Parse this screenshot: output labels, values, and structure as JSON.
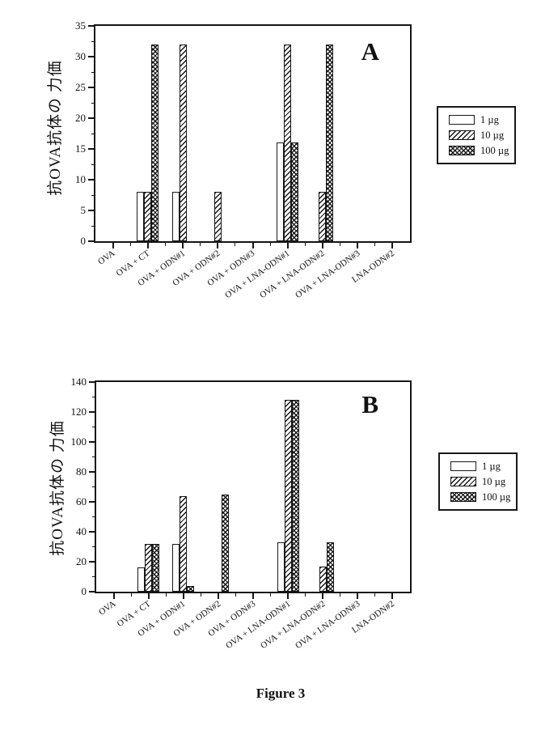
{
  "figure": {
    "caption": "Figure 3"
  },
  "legend": {
    "entries": [
      {
        "label": "1 µg",
        "pattern": "open"
      },
      {
        "label": "10 µg",
        "pattern": "diagonal-hatch"
      },
      {
        "label": "100 µg",
        "pattern": "crosshatch"
      }
    ]
  },
  "chart_data": [
    {
      "type": "bar",
      "panel": "A",
      "title": "",
      "xlabel": "",
      "ylabel": "抗OVA抗体の 力価",
      "ylim": [
        0,
        35
      ],
      "yticks": [
        0,
        5,
        10,
        15,
        20,
        25,
        30,
        35
      ],
      "grid": false,
      "legend_position": "right-outside",
      "categories": [
        "OVA",
        "OVA + CT",
        "OVA + ODN#1",
        "OVA + ODN#2",
        "OVA + ODN#3",
        "OVA + LNA-ODN#1",
        "OVA + LNA-ODN#2",
        "OVA + LNA-ODN#3",
        "LNA-ODN#2"
      ],
      "series": [
        {
          "name": "1 µg",
          "pattern": "open",
          "values": [
            0,
            8,
            8,
            0,
            0,
            16,
            0,
            0,
            0
          ]
        },
        {
          "name": "10 µg",
          "pattern": "diagonal-hatch",
          "values": [
            0,
            8,
            32,
            8,
            0,
            32,
            8,
            0,
            0
          ]
        },
        {
          "name": "100 µg",
          "pattern": "crosshatch",
          "values": [
            0,
            32,
            0,
            0,
            0,
            16,
            32,
            0,
            0
          ]
        }
      ]
    },
    {
      "type": "bar",
      "panel": "B",
      "title": "",
      "xlabel": "",
      "ylabel": "抗OVA抗体の 力価",
      "ylim": [
        0,
        140
      ],
      "yticks": [
        0,
        20,
        40,
        60,
        80,
        100,
        120,
        140
      ],
      "grid": false,
      "legend_position": "right-outside",
      "categories": [
        "OVA",
        "OVA + CT",
        "OVA + ODN#1",
        "OVA + ODN#2",
        "OVA + ODN#3",
        "OVA + LNA-ODN#1",
        "OVA + LNA-ODN#2",
        "OVA + LNA-ODN#3",
        "LNA-ODN#2"
      ],
      "series": [
        {
          "name": "1 µg",
          "pattern": "open",
          "values": [
            0,
            16,
            32,
            0,
            0,
            33,
            0,
            0,
            0
          ]
        },
        {
          "name": "10 µg",
          "pattern": "diagonal-hatch",
          "values": [
            0,
            32,
            64,
            0,
            0,
            128,
            17,
            0,
            0
          ]
        },
        {
          "name": "100 µg",
          "pattern": "crosshatch",
          "values": [
            0,
            32,
            4,
            65,
            0,
            128,
            33,
            0,
            0
          ]
        }
      ]
    }
  ]
}
